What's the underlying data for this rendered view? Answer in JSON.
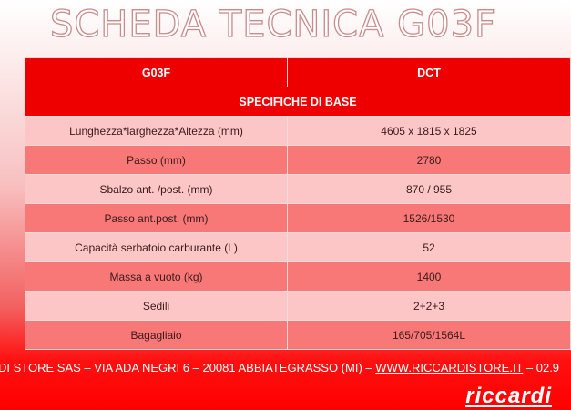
{
  "title": "SCHEDA TECNICA G03F",
  "table": {
    "headers": [
      "G03F",
      "DCT"
    ],
    "section": "SPECIFICHE DI BASE",
    "rows": [
      {
        "label": "Lunghezza*larghezza*Altezza (mm)",
        "value": "4605 x 1815 x 1825"
      },
      {
        "label": "Passo (mm)",
        "value": "2780"
      },
      {
        "label": "Sbalzo ant. /post. (mm)",
        "value": "870 / 955"
      },
      {
        "label": "Passo ant.post. (mm)",
        "value": "1526/1530"
      },
      {
        "label": "Capacità serbatoio carburante (L)",
        "value": "52"
      },
      {
        "label": "Massa a vuoto (kg)",
        "value": "1400"
      },
      {
        "label": "Sedili",
        "value": "2+2+3"
      },
      {
        "label": "Bagagliaio",
        "value": "165/705/1564L"
      }
    ]
  },
  "footer": {
    "address": "DI STORE SAS – VIA ADA NEGRI 6 – 20081 ABBIATEGRASSO (MI) – ",
    "website": "WWW.RICCARDISTORE.IT",
    "phone": " – 02.9"
  },
  "logo": "riccardi"
}
